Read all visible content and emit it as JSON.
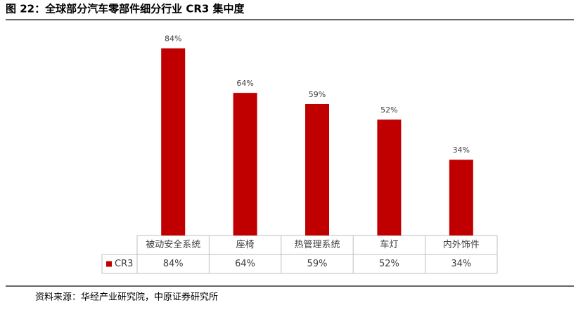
{
  "chart_data": {
    "type": "bar",
    "title": "图 22：全球部分汽车零部件细分行业 CR3 集中度",
    "source": "资料来源：华经产业研究院，中原证券研究所",
    "categories": [
      "被动安全系统",
      "座椅",
      "热管理系统",
      "车灯",
      "内外饰件"
    ],
    "series": [
      {
        "name": "CR3",
        "color": "#c00000",
        "values": [
          84,
          64,
          59,
          52,
          34
        ],
        "value_labels": [
          "84%",
          "64%",
          "59%",
          "52%",
          "34%"
        ]
      }
    ],
    "ylim": [
      0,
      100
    ]
  }
}
